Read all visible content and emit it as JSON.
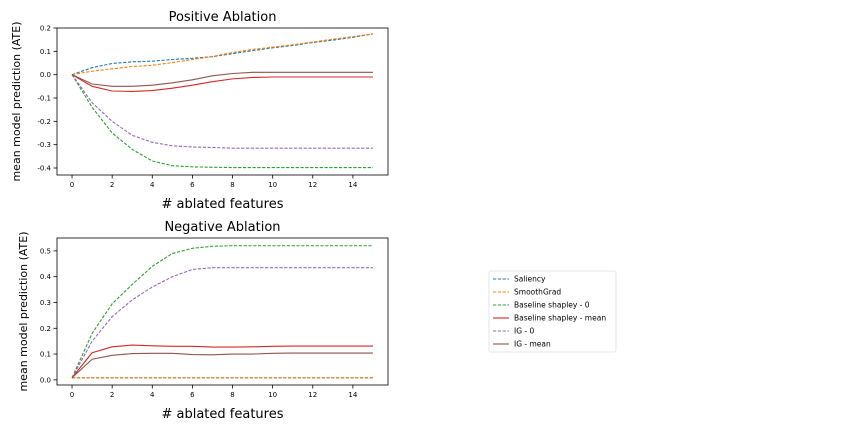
{
  "chart_data": [
    {
      "type": "line",
      "title": "Positive Ablation",
      "xlabel": "# ablated features",
      "ylabel": "mean model prediction (ATE)",
      "xlim": [
        -0.75,
        15.75
      ],
      "ylim": [
        -0.43,
        0.2
      ],
      "xticks": [
        0,
        2,
        4,
        6,
        8,
        10,
        12,
        14
      ],
      "yticks": [
        -0.4,
        -0.3,
        -0.2,
        -0.1,
        0.0,
        0.1,
        0.2
      ],
      "ytick_labels": [
        "-0.4",
        "-0.3",
        "-0.2",
        "-0.1",
        "0.0",
        "0.1",
        "0.2"
      ],
      "x": [
        0,
        1,
        2,
        3,
        4,
        5,
        6,
        7,
        8,
        9,
        10,
        11,
        12,
        13,
        14,
        15
      ],
      "series": [
        {
          "name": "Saliency",
          "color": "#1f77b4",
          "dash": true,
          "values": [
            0.0,
            0.03,
            0.048,
            0.055,
            0.058,
            0.065,
            0.07,
            0.077,
            0.09,
            0.103,
            0.115,
            0.125,
            0.138,
            0.148,
            0.16,
            0.175
          ]
        },
        {
          "name": "SmoothGrad",
          "color": "#ff7f0e",
          "dash": true,
          "values": [
            0.0,
            0.015,
            0.025,
            0.035,
            0.04,
            0.052,
            0.065,
            0.078,
            0.095,
            0.108,
            0.118,
            0.128,
            0.14,
            0.152,
            0.163,
            0.175
          ]
        },
        {
          "name": "Baseline shapley - 0",
          "color": "#2ca02c",
          "dash": true,
          "values": [
            0.0,
            -0.14,
            -0.25,
            -0.32,
            -0.37,
            -0.39,
            -0.395,
            -0.397,
            -0.398,
            -0.398,
            -0.398,
            -0.398,
            -0.398,
            -0.398,
            -0.398,
            -0.398
          ]
        },
        {
          "name": "Baseline shapley - mean",
          "color": "#d62728",
          "dash": false,
          "values": [
            0.0,
            -0.05,
            -0.07,
            -0.072,
            -0.068,
            -0.058,
            -0.045,
            -0.03,
            -0.018,
            -0.012,
            -0.01,
            -0.01,
            -0.01,
            -0.01,
            -0.01,
            -0.01
          ]
        },
        {
          "name": "IG - 0",
          "color": "#9467bd",
          "dash": true,
          "values": [
            0.0,
            -0.12,
            -0.2,
            -0.26,
            -0.29,
            -0.305,
            -0.31,
            -0.312,
            -0.315,
            -0.315,
            -0.315,
            -0.315,
            -0.315,
            -0.315,
            -0.315,
            -0.315
          ]
        },
        {
          "name": "IG - mean",
          "color": "#8c564b",
          "dash": false,
          "values": [
            0.0,
            -0.04,
            -0.05,
            -0.05,
            -0.045,
            -0.035,
            -0.022,
            -0.005,
            0.005,
            0.01,
            0.01,
            0.01,
            0.01,
            0.01,
            0.01,
            0.01
          ]
        }
      ]
    },
    {
      "type": "line",
      "title": "Negative Ablation",
      "xlabel": "# ablated features",
      "ylabel": "mean model prediction (ATE)",
      "xlim": [
        -0.75,
        15.75
      ],
      "ylim": [
        -0.02,
        0.55
      ],
      "xticks": [
        0,
        2,
        4,
        6,
        8,
        10,
        12,
        14
      ],
      "yticks": [
        0.0,
        0.1,
        0.2,
        0.3,
        0.4,
        0.5
      ],
      "ytick_labels": [
        "0.0",
        "0.1",
        "0.2",
        "0.3",
        "0.4",
        "0.5"
      ],
      "x": [
        0,
        1,
        2,
        3,
        4,
        5,
        6,
        7,
        8,
        9,
        10,
        11,
        12,
        13,
        14,
        15
      ],
      "series": [
        {
          "name": "Saliency",
          "color": "#1f77b4",
          "dash": true,
          "values": [
            0.008,
            0.008,
            0.008,
            0.008,
            0.008,
            0.008,
            0.008,
            0.008,
            0.008,
            0.008,
            0.008,
            0.008,
            0.008,
            0.008,
            0.008,
            0.008
          ]
        },
        {
          "name": "SmoothGrad",
          "color": "#ff7f0e",
          "dash": true,
          "values": [
            0.008,
            0.008,
            0.008,
            0.008,
            0.008,
            0.008,
            0.008,
            0.008,
            0.008,
            0.008,
            0.008,
            0.008,
            0.008,
            0.008,
            0.008,
            0.008
          ]
        },
        {
          "name": "Baseline shapley - 0",
          "color": "#2ca02c",
          "dash": true,
          "values": [
            0.008,
            0.18,
            0.295,
            0.37,
            0.44,
            0.49,
            0.51,
            0.518,
            0.52,
            0.52,
            0.52,
            0.52,
            0.52,
            0.52,
            0.52,
            0.52
          ]
        },
        {
          "name": "Baseline shapley - mean",
          "color": "#d62728",
          "dash": false,
          "values": [
            0.008,
            0.105,
            0.128,
            0.135,
            0.132,
            0.13,
            0.13,
            0.127,
            0.127,
            0.128,
            0.13,
            0.131,
            0.131,
            0.131,
            0.131,
            0.131
          ]
        },
        {
          "name": "IG - 0",
          "color": "#9467bd",
          "dash": true,
          "values": [
            0.008,
            0.15,
            0.245,
            0.31,
            0.36,
            0.4,
            0.428,
            0.435,
            0.435,
            0.435,
            0.435,
            0.435,
            0.435,
            0.435,
            0.435,
            0.435
          ]
        },
        {
          "name": "IG - mean",
          "color": "#8c564b",
          "dash": false,
          "values": [
            0.008,
            0.08,
            0.095,
            0.102,
            0.103,
            0.103,
            0.098,
            0.097,
            0.1,
            0.1,
            0.103,
            0.104,
            0.104,
            0.104,
            0.104,
            0.104
          ]
        }
      ]
    }
  ],
  "legend": {
    "placement": "right",
    "entries": [
      {
        "name": "Saliency",
        "color": "#1f77b4",
        "dash": true
      },
      {
        "name": "SmoothGrad",
        "color": "#ff7f0e",
        "dash": true
      },
      {
        "name": "Baseline shapley - 0",
        "color": "#2ca02c",
        "dash": true
      },
      {
        "name": "Baseline shapley - mean",
        "color": "#d62728",
        "dash": false
      },
      {
        "name": "IG - 0",
        "color": "#9467bd",
        "dash": true
      },
      {
        "name": "IG - mean",
        "color": "#8c564b",
        "dash": false
      }
    ]
  }
}
